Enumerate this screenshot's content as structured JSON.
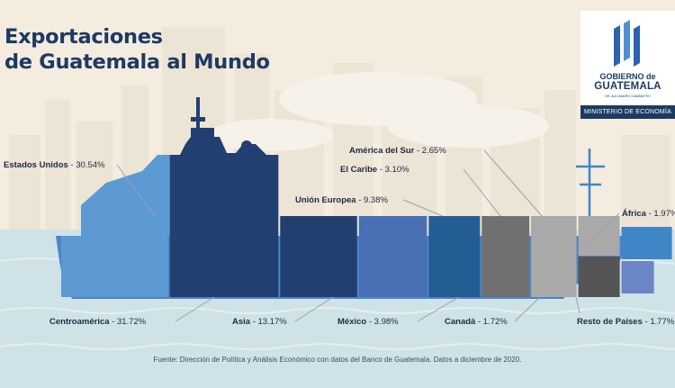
{
  "title_lines": [
    "Exportaciones",
    "de Guatemala al Mundo"
  ],
  "logo": {
    "line1": "GOBIERNO de",
    "line2": "GUATEMALA",
    "line3": "DR. ALEJANDRO GIAMMATTEI",
    "ministry": "MINISTERIO DE ECONOMÍA"
  },
  "source": "Fuente: Dirección de Política y Análisis Económico con datos del Banco de Guatemala. Datos a diciembre de 2020.",
  "colors": {
    "background": "#f3ecdf",
    "sea": "#cfe2e7",
    "navy": "#1d3a63",
    "text": "#1d2a44"
  },
  "chart_data": {
    "type": "bar",
    "title": "Exportaciones de Guatemala al Mundo",
    "unit": "%",
    "series": [
      {
        "name": "Centroamérica",
        "value": 31.72,
        "value_label": "31.72%",
        "color": "#223f72"
      },
      {
        "name": "Estados Unidos",
        "value": 30.54,
        "value_label": "30.54%",
        "color": "#5d9ad3"
      },
      {
        "name": "Asia",
        "value": 13.17,
        "value_label": "13.17%",
        "color": "#223f72"
      },
      {
        "name": "Unión Europea",
        "value": 9.38,
        "value_label": "9.38%",
        "color": "#496fb5"
      },
      {
        "name": "México",
        "value": 3.98,
        "value_label": "3.98%",
        "color": "#245d93"
      },
      {
        "name": "El Caribe",
        "value": 3.1,
        "value_label": "3.10%",
        "color": "#707070"
      },
      {
        "name": "América del Sur",
        "value": 2.65,
        "value_label": "2.65%",
        "color": "#a9a9a9"
      },
      {
        "name": "Resto de Países",
        "value": 1.77,
        "value_label": "1.77%",
        "color": "#6a86c6"
      },
      {
        "name": "Canadá",
        "value": 1.72,
        "value_label": "1.72%",
        "color": "#555555"
      },
      {
        "name": "África",
        "value": 1.97,
        "value_label": "1.97%",
        "color": "#3f86c6"
      }
    ]
  }
}
